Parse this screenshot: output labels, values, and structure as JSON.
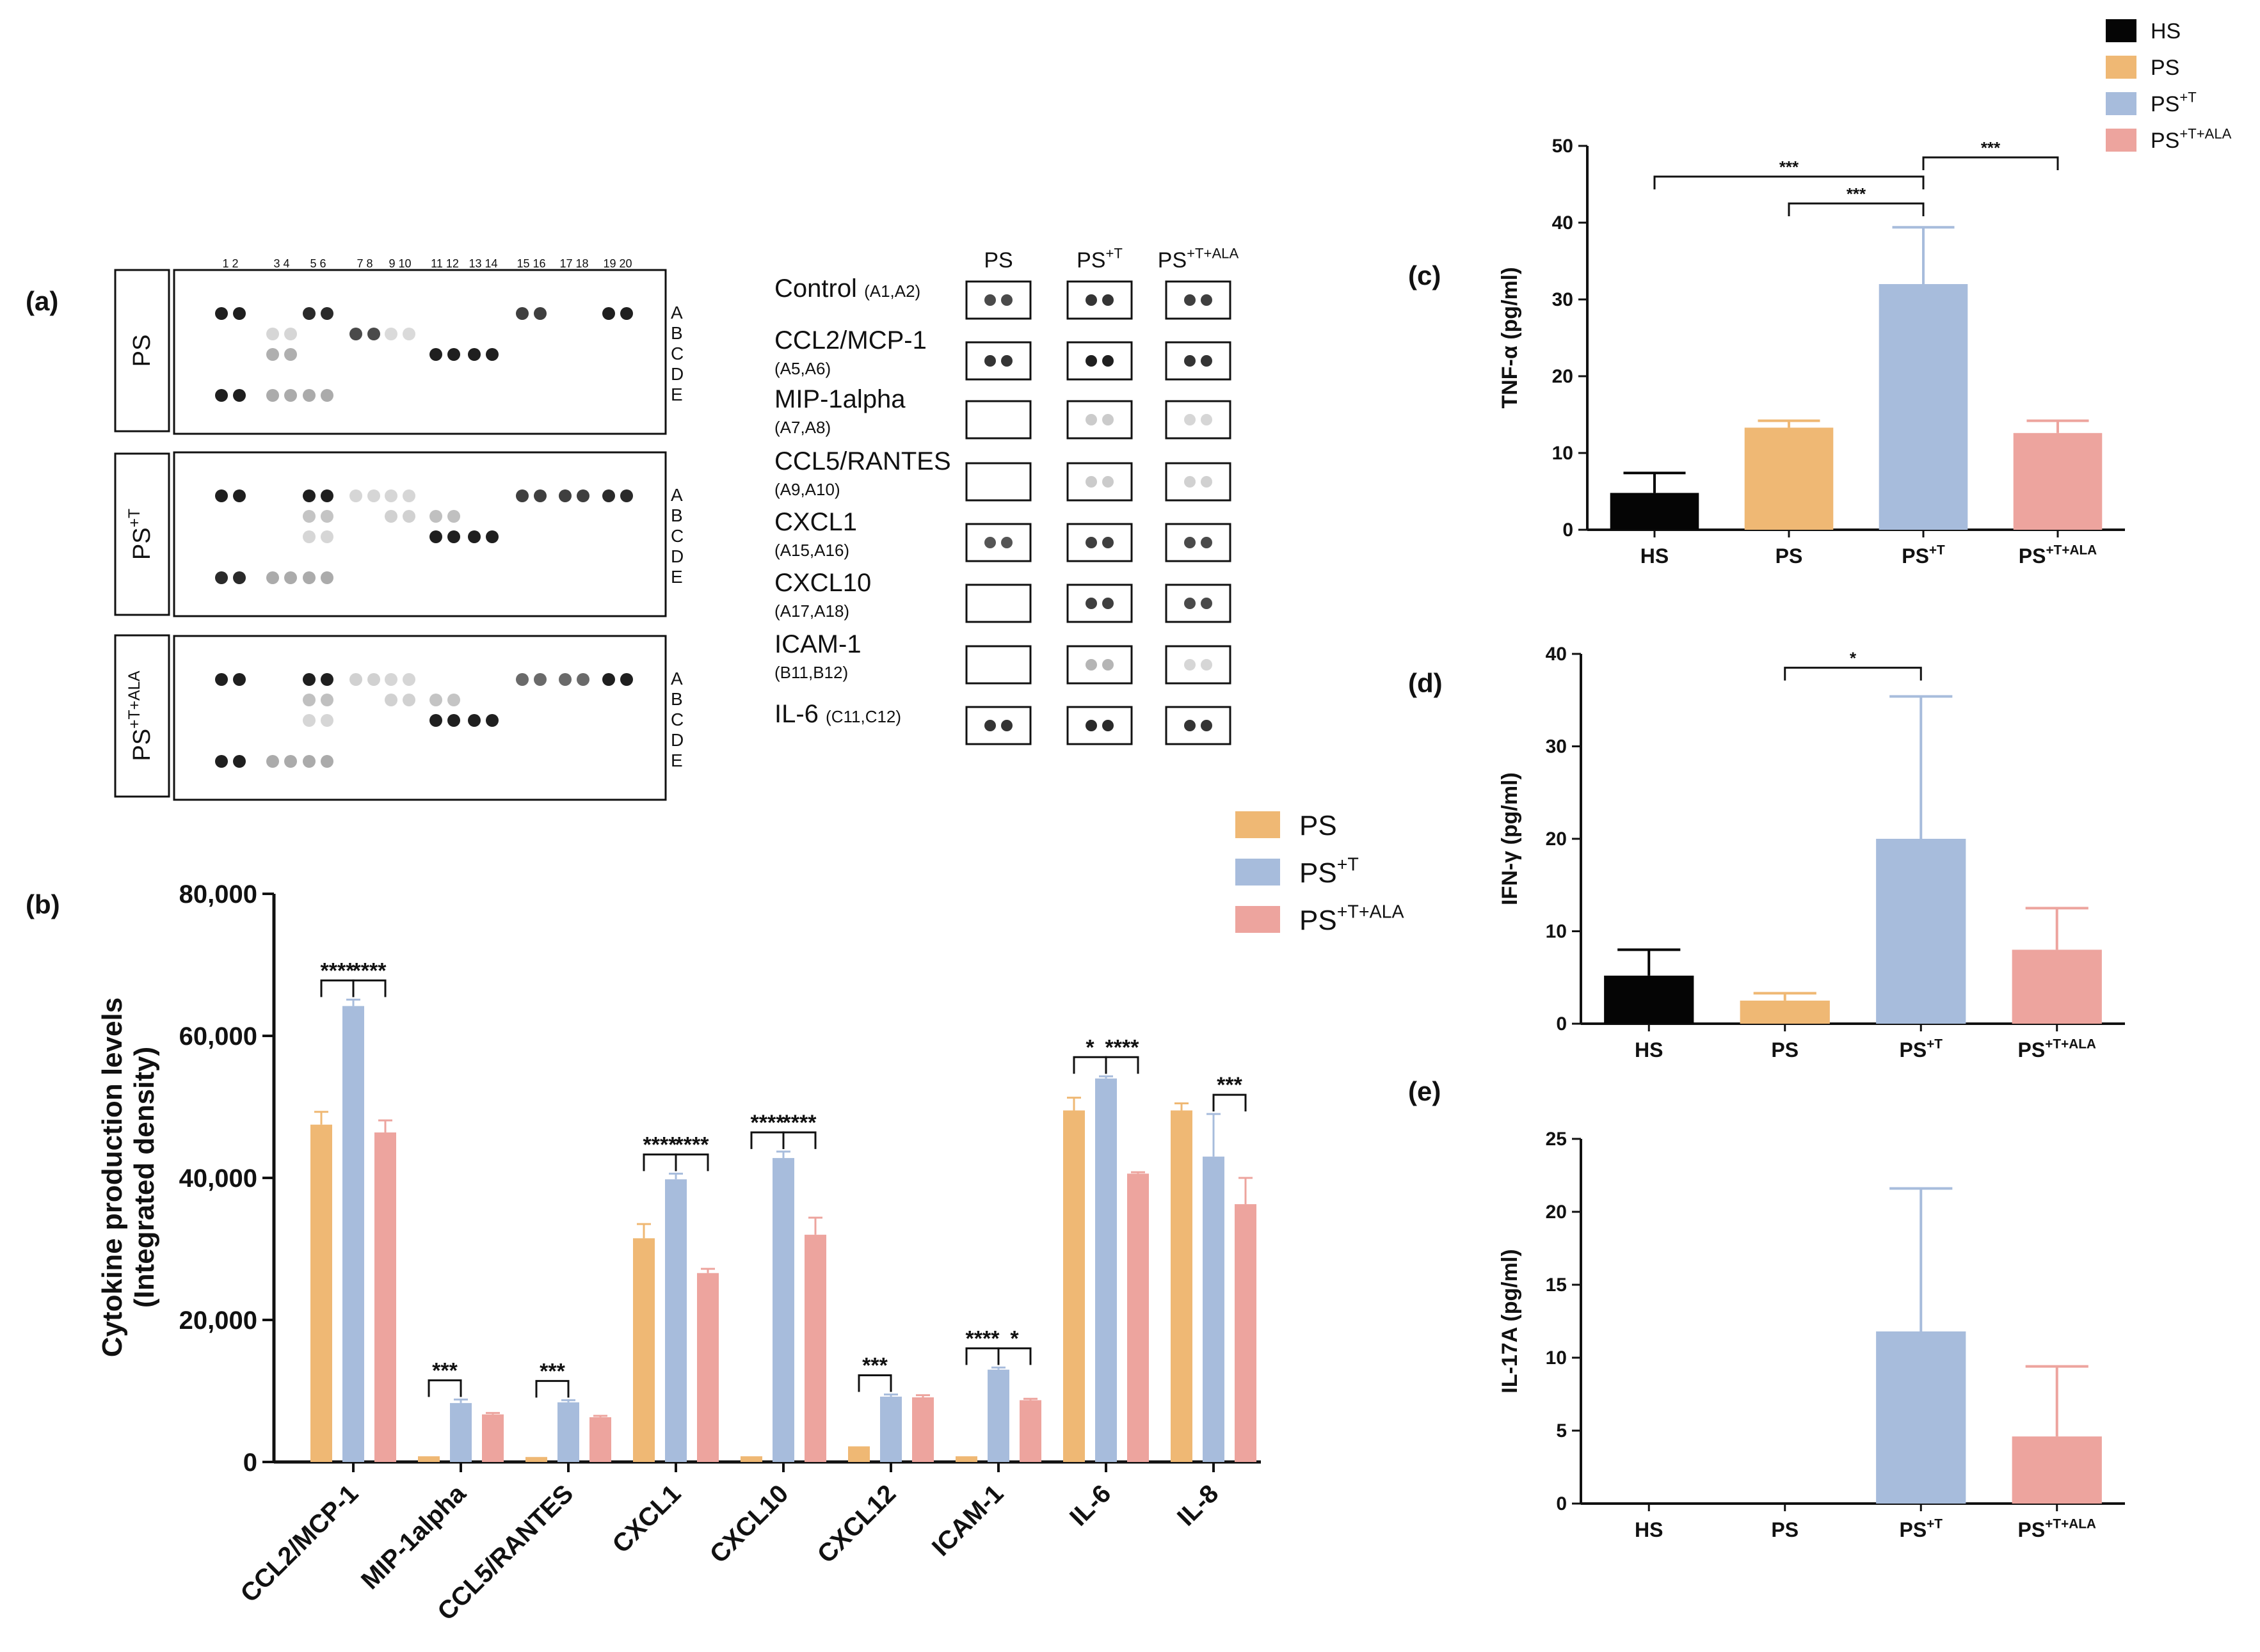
{
  "colors": {
    "HS": "#050505",
    "PS": "#efb874",
    "PST": "#a7bcdc",
    "PSTALA": "#eda49e",
    "axis": "#111111",
    "dot": "#1a1a1a"
  },
  "legend_top": {
    "items": [
      {
        "key": "HS",
        "label": "HS"
      },
      {
        "key": "PS",
        "label": "PS"
      },
      {
        "key": "PST",
        "base": "PS",
        "sup": "+T"
      },
      {
        "key": "PSTALA",
        "base": "PS",
        "sup": "+T+ALA"
      }
    ]
  },
  "legend_mid": {
    "items": [
      {
        "key": "PS",
        "base": "PS",
        "sup": ""
      },
      {
        "key": "PST",
        "base": "PS",
        "sup": "+T"
      },
      {
        "key": "PSTALA",
        "base": "PS",
        "sup": "+T+ALA"
      }
    ]
  },
  "panel_a": {
    "label": "(a)",
    "column_numbers": [
      "1 2",
      "3 4",
      "5 6",
      "7 8",
      "9 10",
      "11 12",
      "13 14",
      "15 16",
      "17 18",
      "19 20"
    ],
    "row_letters": [
      "A",
      "B",
      "C",
      "D",
      "E"
    ],
    "membranes": [
      {
        "label_base": "PS",
        "label_sup": ""
      },
      {
        "label_base": "PS",
        "label_sup": "+T"
      },
      {
        "label_base": "PS",
        "label_sup": "+T+ALA"
      }
    ],
    "zoom_headers": [
      {
        "base": "PS",
        "sup": ""
      },
      {
        "base": "PS",
        "sup": "+T"
      },
      {
        "base": "PS",
        "sup": "+T+ALA"
      }
    ],
    "zoom_rows": [
      {
        "name": "Control",
        "coords": "(A1,A2)",
        "inline": true,
        "intensity": [
          0.75,
          0.85,
          0.8
        ]
      },
      {
        "name": "CCL2/MCP-1",
        "coords": "(A5,A6)",
        "inline": false,
        "intensity": [
          0.85,
          0.95,
          0.85
        ]
      },
      {
        "name": "MIP-1alpha",
        "coords": "(A7,A8)",
        "inline": false,
        "intensity": [
          0,
          0.15,
          0.1
        ]
      },
      {
        "name": "CCL5/RANTES",
        "coords": "(A9,A10)",
        "inline": false,
        "intensity": [
          0,
          0.15,
          0.12
        ]
      },
      {
        "name": "CXCL1",
        "coords": "(A15,A16)",
        "inline": false,
        "intensity": [
          0.7,
          0.8,
          0.75
        ]
      },
      {
        "name": "CXCL10",
        "coords": "(A17,A18)",
        "inline": false,
        "intensity": [
          0,
          0.8,
          0.75
        ]
      },
      {
        "name": "ICAM-1",
        "coords": "(B11,B12)",
        "inline": false,
        "intensity": [
          0,
          0.25,
          0.1
        ]
      },
      {
        "name": "IL-6",
        "coords": "(C11,C12)",
        "inline": true,
        "intensity": [
          0.85,
          0.9,
          0.85
        ]
      }
    ]
  },
  "chart_data": [
    {
      "id": "b",
      "label": "(b)",
      "type": "bar",
      "ylabel_lines": [
        "Cytokine production levels",
        "(Integrated density)"
      ],
      "ylim": [
        0,
        80000
      ],
      "yticks": [
        0,
        20000,
        40000,
        60000,
        80000
      ],
      "ytick_labels": [
        "0",
        "20,000",
        "40,000",
        "60,000",
        "80,000"
      ],
      "categories": [
        "CCL2/MCP-1",
        "MIP-1alpha",
        "CCL5/RANTES",
        "CXCL1",
        "CXCL10",
        "CXCL12",
        "ICAM-1",
        "IL-6",
        "IL-8"
      ],
      "series": [
        {
          "key": "PS",
          "values": [
            47500,
            800,
            700,
            31500,
            800,
            2200,
            800,
            49500,
            49500
          ],
          "errors": [
            1800,
            0,
            0,
            2000,
            0,
            0,
            0,
            1800,
            1000
          ]
        },
        {
          "key": "PST",
          "values": [
            64200,
            8300,
            8400,
            39800,
            42800,
            9200,
            13000,
            54000,
            43000
          ],
          "errors": [
            900,
            500,
            300,
            800,
            900,
            300,
            300,
            300,
            6000
          ]
        },
        {
          "key": "PSTALA",
          "values": [
            46400,
            6700,
            6300,
            26600,
            32000,
            9100,
            8700,
            40600,
            36300
          ],
          "errors": [
            1700,
            200,
            200,
            600,
            2400,
            300,
            200,
            200,
            3700
          ]
        }
      ],
      "annotations": [
        {
          "cat": 0,
          "a": 0,
          "b": 1,
          "text": "****"
        },
        {
          "cat": 0,
          "a": 1,
          "b": 2,
          "text": "****"
        },
        {
          "cat": 1,
          "a": 0,
          "b": 1,
          "text": "***"
        },
        {
          "cat": 2,
          "a": 0,
          "b": 1,
          "text": "***"
        },
        {
          "cat": 3,
          "a": 0,
          "b": 1,
          "text": "****"
        },
        {
          "cat": 3,
          "a": 1,
          "b": 2,
          "text": "****"
        },
        {
          "cat": 4,
          "a": 0,
          "b": 1,
          "text": "****"
        },
        {
          "cat": 4,
          "a": 1,
          "b": 2,
          "text": "****"
        },
        {
          "cat": 5,
          "a": 0,
          "b": 1,
          "text": "***"
        },
        {
          "cat": 6,
          "a": 0,
          "b": 1,
          "text": "****"
        },
        {
          "cat": 6,
          "a": 1,
          "b": 2,
          "text": "*"
        },
        {
          "cat": 7,
          "a": 0,
          "b": 1,
          "text": "*"
        },
        {
          "cat": 7,
          "a": 1,
          "b": 2,
          "text": "****"
        },
        {
          "cat": 8,
          "a": 1,
          "b": 2,
          "text": "***"
        }
      ]
    },
    {
      "id": "c",
      "label": "(c)",
      "type": "bar",
      "ylabel_base": "TNF-α (pg/ml)",
      "ylim": [
        0,
        50
      ],
      "yticks": [
        0,
        10,
        20,
        30,
        40,
        50
      ],
      "ytick_labels": [
        "0",
        "10",
        "20",
        "30",
        "40",
        "50"
      ],
      "groups": [
        {
          "key": "HS",
          "base": "HS",
          "sup": ""
        },
        {
          "key": "PS",
          "base": "PS",
          "sup": ""
        },
        {
          "key": "PST",
          "base": "PS",
          "sup": "+T"
        },
        {
          "key": "PSTALA",
          "base": "PS",
          "sup": "+T+ALA"
        }
      ],
      "values": [
        4.8,
        13.3,
        32.0,
        12.6
      ],
      "errors": [
        2.6,
        0.9,
        7.4,
        1.6
      ],
      "annotations": [
        {
          "a": 0,
          "b": 2,
          "text": "***",
          "y": 46
        },
        {
          "a": 1,
          "b": 2,
          "text": "***",
          "y": 42.5
        },
        {
          "a": 2,
          "b": 3,
          "text": "***",
          "y": 48.5
        }
      ]
    },
    {
      "id": "d",
      "label": "(d)",
      "type": "bar",
      "ylabel_base": "IFN-γ (pg/ml)",
      "ylim": [
        0,
        40
      ],
      "yticks": [
        0,
        10,
        20,
        30,
        40
      ],
      "ytick_labels": [
        "0",
        "10",
        "20",
        "30",
        "40"
      ],
      "groups": [
        {
          "key": "HS",
          "base": "HS",
          "sup": ""
        },
        {
          "key": "PS",
          "base": "PS",
          "sup": ""
        },
        {
          "key": "PST",
          "base": "PS",
          "sup": "+T"
        },
        {
          "key": "PSTALA",
          "base": "PS",
          "sup": "+T+ALA"
        }
      ],
      "values": [
        5.2,
        2.5,
        20.0,
        8.0
      ],
      "errors": [
        2.8,
        0.8,
        15.4,
        4.5
      ],
      "annotations": [
        {
          "a": 1,
          "b": 2,
          "text": "*",
          "y": 38.5
        }
      ]
    },
    {
      "id": "e",
      "label": "(e)",
      "type": "bar",
      "ylabel_base": "IL-17A (pg/ml)",
      "ylim": [
        0,
        25
      ],
      "yticks": [
        0,
        5,
        10,
        15,
        20,
        25
      ],
      "ytick_labels": [
        "0",
        "5",
        "10",
        "15",
        "20",
        "25"
      ],
      "groups": [
        {
          "key": "HS",
          "base": "HS",
          "sup": ""
        },
        {
          "key": "PS",
          "base": "PS",
          "sup": ""
        },
        {
          "key": "PST",
          "base": "PS",
          "sup": "+T"
        },
        {
          "key": "PSTALA",
          "base": "PS",
          "sup": "+T+ALA"
        }
      ],
      "values": [
        0,
        0,
        11.8,
        4.6
      ],
      "errors": [
        0,
        0,
        9.8,
        4.8
      ],
      "annotations": []
    }
  ]
}
